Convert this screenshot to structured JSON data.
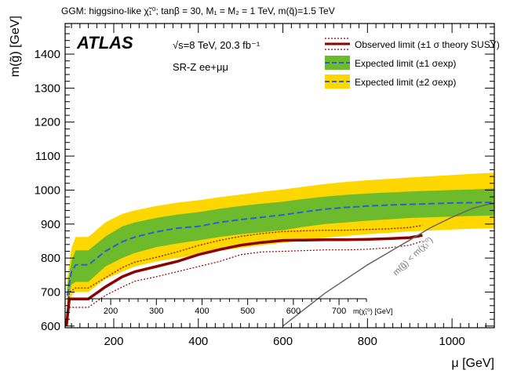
{
  "header_line": "GGM: higgsino-like χ̃₁⁰; tanβ = 30, M₁ = M₂ = 1 TeV, m(q̃)=1.5 TeV",
  "chart_data": {
    "type": "line",
    "title": "GGM: higgsino-like χ̃₁⁰; tanβ = 30, M₁ = M₂ = 1 TeV, m(q̃)=1.5 TeV",
    "xlabel": "μ [GeV]",
    "ylabel": "m(g̃) [GeV]",
    "xlim": [
      85,
      1100
    ],
    "ylim": [
      595,
      1490
    ],
    "x_ticks": [
      200,
      400,
      600,
      800,
      1000
    ],
    "y_ticks": [
      600,
      700,
      800,
      900,
      1000,
      1100,
      1200,
      1300,
      1400
    ],
    "secondary_x_axis": {
      "label": "m(χ̃₁⁰) [GeV]",
      "ticks": [
        200,
        300,
        400,
        500,
        600,
        700
      ]
    },
    "experiment_label": "ATLAS",
    "energy_label": "√s=8 TeV, 20.3 fb⁻¹",
    "region_label": "SR-Z ee+μμ",
    "kinematic_label": "m(g̃) < m(χ̃₁⁰)",
    "legend": {
      "position": "top-right",
      "entries": [
        {
          "label": "Observed limit (±1 σ theory SUSY)",
          "style": "observed"
        },
        {
          "label": "Expected limit (±1 σexp)",
          "style": "expected-1sigma"
        },
        {
          "label": "Expected limit (±2 σexp)",
          "style": "expected-2sigma"
        }
      ]
    },
    "series": [
      {
        "name": "Observed limit",
        "style": "observed",
        "x": [
          88,
          95,
          110,
          140,
          180,
          220,
          250,
          300,
          350,
          400,
          450,
          500,
          550,
          600,
          650,
          700,
          750,
          800,
          850,
          900,
          930
        ],
        "y": [
          600,
          680,
          680,
          680,
          715,
          745,
          760,
          775,
          790,
          810,
          825,
          838,
          846,
          852,
          853,
          854,
          854,
          855,
          857,
          860,
          867
        ]
      },
      {
        "name": "Observed +1σ theory",
        "style": "obs-theory",
        "x": [
          88,
          95,
          110,
          140,
          180,
          220,
          250,
          300,
          350,
          400,
          450,
          500,
          550,
          600,
          650,
          700,
          750,
          800,
          850,
          900,
          930
        ],
        "y": [
          600,
          700,
          712,
          712,
          742,
          772,
          788,
          802,
          818,
          837,
          852,
          864,
          872,
          878,
          880,
          882,
          882,
          884,
          886,
          890,
          896
        ]
      },
      {
        "name": "Observed −1σ theory",
        "style": "obs-theory",
        "x": [
          88,
          95,
          110,
          140,
          180,
          220,
          250,
          300,
          350,
          400,
          450,
          500,
          550,
          600,
          650,
          700,
          750,
          800,
          850,
          900,
          930
        ],
        "y": [
          600,
          655,
          655,
          655,
          690,
          715,
          732,
          745,
          760,
          775,
          790,
          810,
          818,
          820,
          822,
          824,
          824,
          826,
          830,
          838,
          850
        ]
      },
      {
        "name": "Expected limit",
        "style": "expected",
        "x": [
          90,
          100,
          110,
          140,
          180,
          220,
          250,
          300,
          350,
          400,
          450,
          500,
          550,
          600,
          650,
          700,
          750,
          800,
          850,
          900,
          950,
          1000,
          1050,
          1100
        ],
        "y": [
          690,
          760,
          780,
          780,
          820,
          848,
          862,
          877,
          888,
          893,
          905,
          913,
          920,
          927,
          936,
          944,
          949,
          953,
          956,
          958,
          960,
          962,
          963,
          964
        ]
      },
      {
        "name": "Expected +1σ",
        "style": "band1-edge",
        "x": [
          90,
          100,
          110,
          140,
          180,
          220,
          250,
          300,
          350,
          400,
          450,
          500,
          550,
          600,
          650,
          700,
          750,
          800,
          850,
          900,
          950,
          1000,
          1050,
          1100
        ],
        "y": [
          718,
          792,
          823,
          823,
          863,
          893,
          905,
          918,
          928,
          935,
          945,
          953,
          960,
          966,
          974,
          981,
          986,
          990,
          993,
          996,
          998,
          1000,
          1002,
          1005
        ]
      },
      {
        "name": "Expected −1σ",
        "style": "band1-edge",
        "x": [
          90,
          100,
          110,
          140,
          180,
          220,
          250,
          300,
          350,
          400,
          450,
          500,
          550,
          600,
          650,
          700,
          750,
          800,
          850,
          900,
          950,
          1000,
          1050,
          1100
        ],
        "y": [
          658,
          722,
          730,
          730,
          775,
          800,
          815,
          832,
          843,
          852,
          862,
          870,
          876,
          882,
          892,
          900,
          905,
          910,
          914,
          918,
          920,
          922,
          924,
          925
        ]
      },
      {
        "name": "Expected +2σ",
        "style": "band2-edge",
        "x": [
          90,
          100,
          110,
          140,
          180,
          220,
          250,
          300,
          350,
          400,
          450,
          500,
          550,
          600,
          650,
          700,
          750,
          800,
          850,
          900,
          950,
          1000,
          1050,
          1100
        ],
        "y": [
          738,
          830,
          862,
          862,
          905,
          930,
          940,
          953,
          963,
          970,
          979,
          987,
          995,
          1002,
          1010,
          1018,
          1024,
          1029,
          1033,
          1037,
          1041,
          1044,
          1048,
          1051
        ]
      },
      {
        "name": "Expected −2σ",
        "style": "band2-edge",
        "x": [
          90,
          100,
          110,
          140,
          180,
          220,
          250,
          300,
          350,
          400,
          450,
          500,
          550,
          600,
          650,
          700,
          750,
          800,
          850,
          900,
          950,
          1000,
          1050,
          1100
        ],
        "y": [
          632,
          690,
          700,
          700,
          738,
          760,
          775,
          790,
          800,
          810,
          822,
          830,
          838,
          845,
          852,
          860,
          865,
          870,
          874,
          878,
          881,
          884,
          886,
          888
        ]
      },
      {
        "name": "Kinematic boundary",
        "style": "kinematic",
        "x": [
          600,
          700,
          800,
          900,
          950,
          1000,
          1050,
          1100
        ],
        "y": [
          600,
          697,
          780,
          853,
          890,
          920,
          947,
          963
        ]
      }
    ]
  }
}
